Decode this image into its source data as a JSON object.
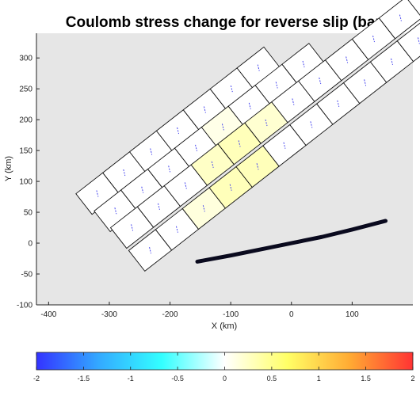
{
  "chart_data": {
    "type": "heatmap",
    "title": "Coulomb stress change for reverse slip (bar)",
    "xlabel": "X (km)",
    "ylabel": "Y (km)",
    "xlim": [
      -420,
      200
    ],
    "ylim": [
      -100,
      340
    ],
    "x_ticks": [
      -400,
      -300,
      -200,
      -100,
      0,
      100
    ],
    "y_ticks": [
      -100,
      -50,
      0,
      50,
      100,
      150,
      200,
      250,
      300
    ],
    "x_tick_labels": [
      "-400",
      "-300",
      "-200",
      "-100",
      "0",
      "100"
    ],
    "y_tick_labels": [
      "-100",
      "-50",
      "0",
      "50",
      "100",
      "150",
      "200",
      "250",
      "300"
    ],
    "grid": false,
    "background_color": "#e6e6e6",
    "fault_rows": [
      {
        "start": [
          -355,
          80
        ],
        "values": [
          0,
          0,
          0,
          0,
          0,
          0,
          0
        ]
      },
      {
        "start": [
          -325,
          52
        ],
        "values": [
          0,
          0,
          0,
          0,
          0.1,
          0,
          0,
          0
        ]
      },
      {
        "start": [
          -298,
          25
        ],
        "values": [
          0,
          0,
          0,
          0.25,
          0.3,
          0.2,
          0,
          0,
          0,
          0,
          0
        ]
      },
      {
        "start": [
          -268,
          -12
        ],
        "values": [
          0,
          0,
          0.15,
          0.3,
          0.3,
          0,
          0,
          0,
          0,
          0,
          0
        ]
      }
    ],
    "trench_line": [
      [
        -155,
        -30
      ],
      [
        -100,
        -20
      ],
      [
        -40,
        -8
      ],
      [
        0,
        0
      ],
      [
        50,
        10
      ],
      [
        100,
        22
      ],
      [
        155,
        36
      ]
    ],
    "colorbar": {
      "min": -2,
      "max": 2,
      "ticks": [
        -2,
        -1.5,
        -1,
        -0.5,
        0,
        0.5,
        1,
        1.5,
        2
      ],
      "tick_labels": [
        "-2",
        "-1.5",
        "-1",
        "-0.5",
        "0",
        "0.5",
        "1",
        "1.5",
        "2"
      ],
      "colormap": [
        "#3333ff",
        "#33aaff",
        "#33ffff",
        "#ffffff",
        "#ffff66",
        "#ffaa33",
        "#ff3333"
      ]
    }
  }
}
